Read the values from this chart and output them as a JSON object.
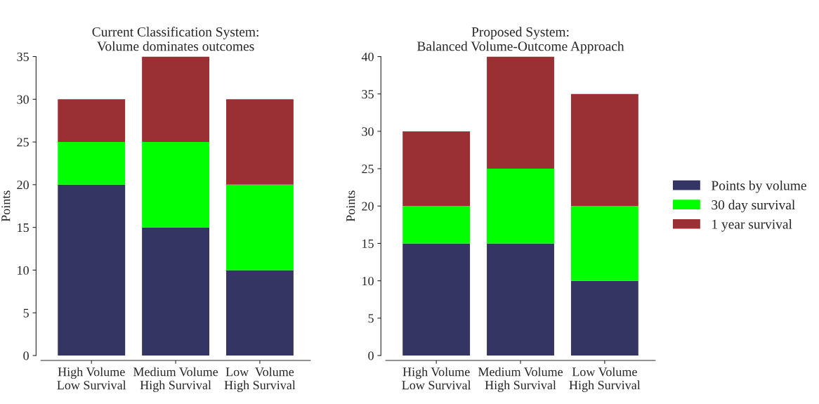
{
  "chart_data": [
    {
      "type": "bar",
      "stacked": true,
      "title": "Current Classification System:\nVolume dominates outcomes",
      "ylabel": "Points",
      "categories": [
        "High Volume\nLow Survival",
        "Medium Volume\nHigh Survival",
        "Low  Volume\nHigh Survival"
      ],
      "ylim": [
        0,
        35
      ],
      "yticks": [
        0,
        5,
        10,
        15,
        20,
        25,
        30,
        35
      ],
      "grid": false,
      "legend": false,
      "series": [
        {
          "color": "#343563",
          "values": [
            20,
            15,
            10
          ]
        },
        {
          "color": "#00ff00",
          "values": [
            5,
            10,
            10
          ]
        },
        {
          "color": "#9b3034",
          "values": [
            5,
            10,
            10
          ]
        }
      ]
    },
    {
      "type": "bar",
      "stacked": true,
      "title": "Proposed System:\nBalanced Volume-Outcome Approach",
      "ylabel": "Points",
      "categories": [
        "High Volume\nLow Survival",
        "Medium Volume\nHigh Survival",
        "Low Volume\nHigh Survival"
      ],
      "ylim": [
        0,
        40
      ],
      "yticks": [
        0,
        5,
        10,
        15,
        20,
        25,
        30,
        35,
        40
      ],
      "grid": false,
      "legend": "right",
      "series": [
        {
          "name": "Points by volume",
          "color": "#343563",
          "values": [
            15,
            15,
            10
          ]
        },
        {
          "name": "30 day survival",
          "color": "#00ff00",
          "values": [
            5,
            10,
            10
          ]
        },
        {
          "name": "1 year survival",
          "color": "#9b3034",
          "values": [
            10,
            15,
            15
          ]
        }
      ]
    }
  ]
}
